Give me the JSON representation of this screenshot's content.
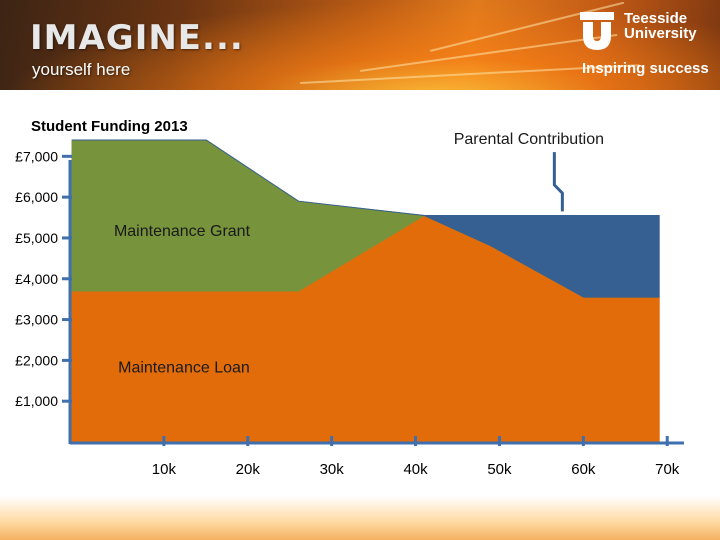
{
  "header": {
    "brand_main": "IMAGINE...",
    "brand_sub": "yourself here",
    "logo_name_line1": "Teesside",
    "logo_name_line2": "University",
    "tagline": "Inspiring success"
  },
  "chart_data": {
    "type": "area",
    "title": "Student Funding 2013",
    "x": [
      0,
      16,
      27,
      42,
      50,
      61,
      70
    ],
    "x_tick_values": [
      10,
      20,
      30,
      40,
      50,
      60,
      70
    ],
    "x_tick_labels": [
      "10k",
      "20k",
      "30k",
      "40k",
      "50k",
      "60k",
      "70k"
    ],
    "y_tick_values": [
      1000,
      2000,
      3000,
      4000,
      5000,
      6000,
      7000
    ],
    "y_tick_labels": [
      "£1,000",
      "£2,000",
      "£3,000",
      "£4,000",
      "£5,000",
      "£6,000",
      "£7,000"
    ],
    "xlim": [
      0,
      72
    ],
    "ylim": [
      0,
      7400
    ],
    "grid": false,
    "stacked": true,
    "series": [
      {
        "name": "Maintenance Loan",
        "color": "#e36c0a",
        "values": [
          3700,
          3700,
          3700,
          5550,
          4800,
          3550,
          3550
        ]
      },
      {
        "name": "Maintenance Grant",
        "color": "#77933c",
        "values": [
          3700,
          3700,
          2200,
          0,
          0,
          0,
          0
        ]
      },
      {
        "name": "Parental Contribution",
        "color": "#366092",
        "values": [
          0,
          0,
          0,
          0,
          750,
          2000,
          2000
        ]
      }
    ],
    "labels": {
      "loan": "Maintenance Loan",
      "grant": "Maintenance Grant",
      "parental": "Parental Contribution"
    }
  }
}
